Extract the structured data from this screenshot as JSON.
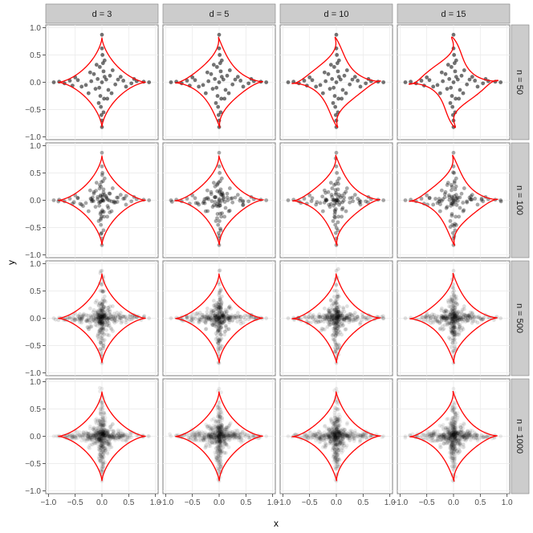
{
  "chart_data": {
    "type": "scatter",
    "xlabel": "x",
    "ylabel": "y",
    "xlim": [
      -1.05,
      1.05
    ],
    "ylim": [
      -1.05,
      1.05
    ],
    "xticks": [
      -1.0,
      -0.5,
      0.0,
      0.5,
      1.0
    ],
    "yticks": [
      -1.0,
      -0.5,
      0.0,
      0.5,
      1.0
    ],
    "xtick_labels": [
      "−1.0",
      "−0.5",
      "0.0",
      "0.5",
      "1.0"
    ],
    "ytick_labels": [
      "−1.0",
      "−0.5",
      "0.0",
      "0.5",
      "1.0"
    ],
    "grid": true,
    "facet_cols": [
      "d = 3",
      "d = 5",
      "d = 10",
      "d = 15"
    ],
    "facet_rows": [
      "n = 50",
      "n = 100",
      "n = 500",
      "n = 1000"
    ],
    "points": [
      [
        0.0,
        0.87
      ],
      [
        0.0,
        -0.82
      ],
      [
        0.0,
        0.62
      ],
      [
        0.0,
        -0.7
      ],
      [
        0.02,
        0.35
      ],
      [
        -0.02,
        -0.45
      ],
      [
        0.03,
        0.2
      ],
      [
        -0.03,
        -0.25
      ],
      [
        0.05,
        0.1
      ],
      [
        -0.05,
        -0.1
      ],
      [
        0.01,
        0.5
      ],
      [
        -0.01,
        -0.6
      ],
      [
        0.04,
        -0.3
      ],
      [
        -0.04,
        0.28
      ],
      [
        0.88,
        0.0
      ],
      [
        -0.9,
        0.0
      ],
      [
        0.65,
        0.02
      ],
      [
        -0.7,
        -0.02
      ],
      [
        0.4,
        0.03
      ],
      [
        -0.45,
        0.04
      ],
      [
        0.25,
        -0.04
      ],
      [
        -0.3,
        -0.05
      ],
      [
        0.55,
        -0.02
      ],
      [
        -0.6,
        0.03
      ],
      [
        0.15,
        0.12
      ],
      [
        -0.15,
        0.15
      ],
      [
        0.12,
        -0.14
      ],
      [
        -0.12,
        -0.12
      ],
      [
        0.3,
        0.05
      ],
      [
        -0.2,
        0.02
      ],
      [
        0.78,
        0.01
      ],
      [
        -0.8,
        0.01
      ],
      [
        0.2,
        0.22
      ],
      [
        -0.22,
        0.18
      ],
      [
        0.18,
        -0.2
      ],
      [
        -0.25,
        -0.2
      ],
      [
        0.35,
        0.1
      ],
      [
        -0.38,
        -0.08
      ],
      [
        0.05,
        0.4
      ],
      [
        -0.06,
        -0.38
      ],
      [
        0.08,
        0.05
      ],
      [
        -0.08,
        0.06
      ],
      [
        0.45,
        -0.08
      ],
      [
        -0.5,
        0.09
      ],
      [
        0.1,
        -0.3
      ],
      [
        -0.1,
        0.32
      ],
      [
        0.0,
        0.0
      ],
      [
        0.6,
        0.06
      ],
      [
        -0.55,
        -0.06
      ],
      [
        0.03,
        -0.55
      ]
    ],
    "overlay": {
      "color": "#ff0000",
      "shape": "astroid contour",
      "extent": 0.82
    },
    "point_color": "#000000"
  }
}
